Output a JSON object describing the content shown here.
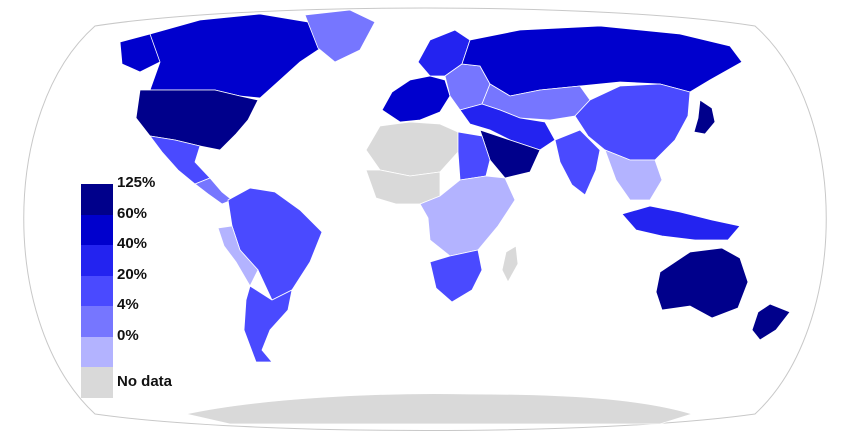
{
  "legend": {
    "items": [
      {
        "label": "125%",
        "color": "#00008b"
      },
      {
        "label": "60%",
        "color": "#0000cd"
      },
      {
        "label": "40%",
        "color": "#2323f0"
      },
      {
        "label": "20%",
        "color": "#4a4aff"
      },
      {
        "label": "4%",
        "color": "#7676ff"
      },
      {
        "label": "0%",
        "color": "#b3b3ff"
      },
      {
        "label": "No data",
        "color": "#d9d9d9"
      }
    ]
  },
  "regions": {
    "united-states": "#00008b",
    "canada": "#0000cd",
    "alaska": "#0000cd",
    "greenland": "#7676ff",
    "mexico": "#4a4aff",
    "central-america": "#7676ff",
    "south-america-north": "#4a4aff",
    "south-america-west": "#b3b3ff",
    "south-america-south": "#4a4aff",
    "europe-west": "#0000cd",
    "scandinavia": "#2323f0",
    "eastern-europe": "#7676ff",
    "russia": "#0000cd",
    "middle-east": "#2323f0",
    "saudi-arabia": "#00008b",
    "north-africa": "#d9d9d9",
    "egypt": "#4a4aff",
    "west-africa": "#d9d9d9",
    "central-africa": "#b3b3ff",
    "southern-africa": "#4a4aff",
    "madagascar": "#d9d9d9",
    "central-asia": "#7676ff",
    "china": "#4a4aff",
    "india": "#4a4aff",
    "southeast-asia": "#b3b3ff",
    "japan": "#00008b",
    "indonesia": "#2323f0",
    "australia": "#00008b",
    "new-zealand": "#00008b",
    "antarctica": "#d9d9d9"
  }
}
